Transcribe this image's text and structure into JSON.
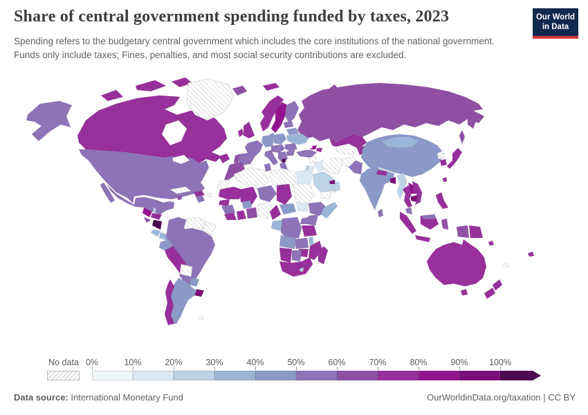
{
  "header": {
    "title": "Share of central government spending funded by taxes, 2023",
    "subtitle": "Spending refers to the budgetary central government which includes the core institutions of the national government. Funds only include taxes; Fines, penalties, and most social security contributions are excluded.",
    "logo": {
      "line1": "Our World",
      "line2": "in Data",
      "bg_color": "#12294e",
      "stripe_color": "#d8353f"
    }
  },
  "legend": {
    "no_data_label": "No data",
    "ticks": [
      "0%",
      "10%",
      "20%",
      "30%",
      "40%",
      "50%",
      "60%",
      "70%",
      "80%",
      "90%",
      "100%"
    ],
    "colors": [
      "#f0f7f9",
      "#dce8f1",
      "#bcd2e5",
      "#9ab6d7",
      "#8b99c8",
      "#8d73b7",
      "#8f50a4",
      "#97309a",
      "#93148d",
      "#7a0f79",
      "#4c0850"
    ]
  },
  "footer": {
    "source_label": "Data source:",
    "source_value": " International Monetary Fund",
    "credit": "OurWorldinData.org/taxation | CC BY"
  },
  "chart_data": {
    "type": "choropleth_map",
    "title": "Share of central government spending funded by taxes, 2023",
    "year": 2023,
    "unit": "%",
    "source": "International Monetary Fund",
    "legend_position": "bottom",
    "bin_labels": [
      "0–10%",
      "10–20%",
      "20–30%",
      "30–40%",
      "40–50%",
      "50–60%",
      "60–70%",
      "70–80%",
      "80–90%",
      "90–100%",
      "100%+"
    ],
    "no_data_label": "No data",
    "regions": {
      "alaska": 5,
      "usa": 5,
      "canada": 7,
      "greenland": null,
      "mexico": 5,
      "guatemala": 8,
      "belize": 2,
      "honduras": 7,
      "el-salvador": 6,
      "nicaragua": 10,
      "costa-rica": 3,
      "panama": 3,
      "cuba": null,
      "jamaica": 6,
      "hispaniola": 7,
      "puerto-rico": null,
      "colombia": 5,
      "venezuela": null,
      "guyanas": null,
      "ecuador": 4,
      "peru": 7,
      "brazil": 5,
      "bolivia": null,
      "paraguay": 4,
      "uruguay": 9,
      "argentina": 4,
      "chile": 7,
      "falkland-islands": null,
      "iceland": 6,
      "svalbard": 7,
      "norway": 7,
      "sweden": 8,
      "finland": 5,
      "denmark": 4,
      "uk": 7,
      "ireland": 7,
      "france": 5,
      "spain": 5,
      "portugal": 6,
      "germany": 4,
      "poland": 4,
      "central-europe": 5,
      "italy": 5,
      "balkans": 5,
      "north-macedonia": 10,
      "greece": 5,
      "romania": 5,
      "bulgaria": 5,
      "ukraine": 3,
      "belarus": 4,
      "baltics": 5,
      "russia": 6,
      "kazakhstan": 7,
      "georgia": 8,
      "azerbaijan": 7,
      "turkey": 5,
      "syria": null,
      "iraq": 1,
      "iran": null,
      "israel": 2,
      "jordan": 1,
      "saudi-arabia": 2,
      "yemen": null,
      "oman": 2,
      "uae": 9,
      "turkmen-uzbek": null,
      "kyrgyz-tajik": 7,
      "afghanistan": null,
      "pakistan": 5,
      "morocco": 6,
      "western-sahara": null,
      "algeria": null,
      "tunisia": 5,
      "libya": null,
      "egypt": 1,
      "mauritania": 7,
      "mali": 7,
      "niger": 5,
      "chad": 7,
      "sudan": null,
      "senegal": 7,
      "guinea": 5,
      "sierra-leone-liberia": 7,
      "cote-divoire": 7,
      "burkina-faso": 4,
      "ghana-togo-benin": 6,
      "nigeria": null,
      "cameroon": 7,
      "central-african-republic": 4,
      "south-sudan": 1,
      "ethiopia": 5,
      "somalia": 3,
      "kenya": 5,
      "uganda": 5,
      "gabon-congo": 3,
      "drc": 5,
      "tanzania": 7,
      "angola": 4,
      "zambia": 5,
      "malawi": 3,
      "mozambique": 7,
      "zimbabwe": 7,
      "namibia": 7,
      "botswana": 5,
      "south-africa": 7,
      "lesotho": 2,
      "madagascar": 7,
      "china": 4,
      "mongolia": 3,
      "india": 4,
      "nepal": 7,
      "bangladesh": 9,
      "sri-lanka": 5,
      "myanmar": 2,
      "thailand": 7,
      "laos": 8,
      "vietnam": 7,
      "cambodia": 9,
      "malaysia": 5,
      "sumatra": 7,
      "java": 7,
      "kalimantan": 7,
      "malaysia-borneo": 5,
      "sulawesi": 6,
      "papua-indonesia": 6,
      "papua-new-guinea": 7,
      "philippines": 7,
      "taiwan": 7,
      "north-korea": null,
      "south-korea": 7,
      "japan": 7,
      "australia": 7,
      "new-zealand": 7,
      "fiji": 7,
      "solomon-islands": 7,
      "new-caledonia": null
    }
  }
}
